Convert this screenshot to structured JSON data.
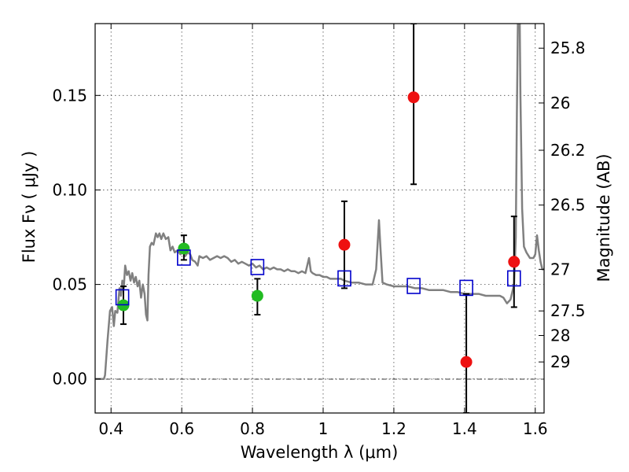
{
  "chart_data": {
    "type": "scatter",
    "xlabel": "Wavelength  λ (μm)",
    "ylabel": "Flux  Fν  ( μJy )",
    "ylabel_right": "Magnitude (AB)",
    "xlim": [
      0.355,
      1.625
    ],
    "ylim": [
      -0.018,
      0.188
    ],
    "x_ticks": [
      0.4,
      0.6,
      0.8,
      1.0,
      1.2,
      1.4,
      1.6
    ],
    "x_tick_labels": [
      "0.4",
      "0.6",
      "0.8",
      "1",
      "1.2",
      "1.4",
      "1.6"
    ],
    "y_ticks": [
      0.0,
      0.05,
      0.1,
      0.15
    ],
    "y_tick_labels": [
      "0.00",
      "0.05",
      "0.10",
      "0.15"
    ],
    "mag_ticks": [
      {
        "label": "25.8",
        "flux": 0.175
      },
      {
        "label": "26",
        "flux": 0.146
      },
      {
        "label": "26.2",
        "flux": 0.121
      },
      {
        "label": "26.5",
        "flux": 0.092
      },
      {
        "label": "27",
        "flux": 0.058
      },
      {
        "label": "27.5",
        "flux": 0.036
      },
      {
        "label": "28",
        "flux": 0.023
      },
      {
        "label": "29",
        "flux": 0.009
      }
    ],
    "grid": true,
    "colors": {
      "green": "#22bb22",
      "red": "#ee1111",
      "model": "#808080",
      "square": "#0000cc"
    },
    "series": [
      {
        "color": "green",
        "points": [
          {
            "x": 0.435,
            "y": 0.039,
            "lo": 0.029,
            "hi": 0.049
          },
          {
            "x": 0.606,
            "y": 0.069,
            "lo": 0.063,
            "hi": 0.076
          },
          {
            "x": 0.814,
            "y": 0.044,
            "lo": 0.034,
            "hi": 0.053
          }
        ]
      },
      {
        "color": "red",
        "points": [
          {
            "x": 1.06,
            "y": 0.071,
            "lo": 0.048,
            "hi": 0.094
          },
          {
            "x": 1.256,
            "y": 0.149,
            "lo": 0.103,
            "hi": 0.188
          },
          {
            "x": 1.405,
            "y": 0.009,
            "lo": -0.018,
            "hi": 0.045
          },
          {
            "x": 1.54,
            "y": 0.062,
            "lo": 0.038,
            "hi": 0.086
          }
        ]
      },
      {
        "color": "square",
        "points": [
          {
            "x": 0.432,
            "y": 0.043
          },
          {
            "x": 0.606,
            "y": 0.064
          },
          {
            "x": 0.814,
            "y": 0.059
          },
          {
            "x": 1.06,
            "y": 0.053
          },
          {
            "x": 1.256,
            "y": 0.049
          },
          {
            "x": 1.405,
            "y": 0.048
          },
          {
            "x": 1.54,
            "y": 0.053
          }
        ]
      }
    ],
    "model_curve": [
      [
        0.355,
        0.0
      ],
      [
        0.37,
        0.0
      ],
      [
        0.38,
        0.0
      ],
      [
        0.383,
        0.002
      ],
      [
        0.39,
        0.02
      ],
      [
        0.397,
        0.036
      ],
      [
        0.403,
        0.038
      ],
      [
        0.408,
        0.028
      ],
      [
        0.412,
        0.036
      ],
      [
        0.418,
        0.035
      ],
      [
        0.424,
        0.048
      ],
      [
        0.428,
        0.044
      ],
      [
        0.432,
        0.052
      ],
      [
        0.436,
        0.048
      ],
      [
        0.44,
        0.06
      ],
      [
        0.445,
        0.055
      ],
      [
        0.45,
        0.057
      ],
      [
        0.455,
        0.052
      ],
      [
        0.46,
        0.056
      ],
      [
        0.465,
        0.051
      ],
      [
        0.47,
        0.054
      ],
      [
        0.475,
        0.049
      ],
      [
        0.48,
        0.052
      ],
      [
        0.485,
        0.043
      ],
      [
        0.49,
        0.05
      ],
      [
        0.495,
        0.045
      ],
      [
        0.499,
        0.034
      ],
      [
        0.503,
        0.031
      ],
      [
        0.506,
        0.055
      ],
      [
        0.51,
        0.07
      ],
      [
        0.515,
        0.072
      ],
      [
        0.52,
        0.071
      ],
      [
        0.527,
        0.077
      ],
      [
        0.532,
        0.075
      ],
      [
        0.537,
        0.077
      ],
      [
        0.542,
        0.074
      ],
      [
        0.548,
        0.077
      ],
      [
        0.555,
        0.074
      ],
      [
        0.562,
        0.075
      ],
      [
        0.568,
        0.068
      ],
      [
        0.574,
        0.07
      ],
      [
        0.58,
        0.067
      ],
      [
        0.588,
        0.068
      ],
      [
        0.596,
        0.066
      ],
      [
        0.603,
        0.067
      ],
      [
        0.61,
        0.065
      ],
      [
        0.617,
        0.067
      ],
      [
        0.624,
        0.066
      ],
      [
        0.63,
        0.063
      ],
      [
        0.638,
        0.062
      ],
      [
        0.645,
        0.06
      ],
      [
        0.65,
        0.065
      ],
      [
        0.66,
        0.064
      ],
      [
        0.67,
        0.065
      ],
      [
        0.68,
        0.063
      ],
      [
        0.69,
        0.064
      ],
      [
        0.7,
        0.065
      ],
      [
        0.71,
        0.064
      ],
      [
        0.72,
        0.065
      ],
      [
        0.73,
        0.064
      ],
      [
        0.74,
        0.062
      ],
      [
        0.75,
        0.063
      ],
      [
        0.76,
        0.061
      ],
      [
        0.77,
        0.062
      ],
      [
        0.78,
        0.061
      ],
      [
        0.79,
        0.06
      ],
      [
        0.8,
        0.061
      ],
      [
        0.81,
        0.059
      ],
      [
        0.82,
        0.06
      ],
      [
        0.83,
        0.058
      ],
      [
        0.84,
        0.059
      ],
      [
        0.85,
        0.058
      ],
      [
        0.86,
        0.059
      ],
      [
        0.87,
        0.058
      ],
      [
        0.88,
        0.058
      ],
      [
        0.89,
        0.057
      ],
      [
        0.9,
        0.058
      ],
      [
        0.91,
        0.057
      ],
      [
        0.92,
        0.057
      ],
      [
        0.93,
        0.056
      ],
      [
        0.94,
        0.057
      ],
      [
        0.95,
        0.056
      ],
      [
        0.96,
        0.064
      ],
      [
        0.965,
        0.057
      ],
      [
        0.97,
        0.056
      ],
      [
        0.98,
        0.055
      ],
      [
        0.99,
        0.055
      ],
      [
        1.0,
        0.054
      ],
      [
        1.01,
        0.054
      ],
      [
        1.02,
        0.053
      ],
      [
        1.03,
        0.053
      ],
      [
        1.04,
        0.053
      ],
      [
        1.05,
        0.053
      ],
      [
        1.06,
        0.052
      ],
      [
        1.08,
        0.051
      ],
      [
        1.1,
        0.051
      ],
      [
        1.12,
        0.05
      ],
      [
        1.14,
        0.05
      ],
      [
        1.15,
        0.058
      ],
      [
        1.158,
        0.084
      ],
      [
        1.162,
        0.07
      ],
      [
        1.168,
        0.051
      ],
      [
        1.18,
        0.05
      ],
      [
        1.2,
        0.049
      ],
      [
        1.22,
        0.049
      ],
      [
        1.24,
        0.049
      ],
      [
        1.26,
        0.048
      ],
      [
        1.28,
        0.048
      ],
      [
        1.3,
        0.047
      ],
      [
        1.32,
        0.047
      ],
      [
        1.34,
        0.047
      ],
      [
        1.36,
        0.046
      ],
      [
        1.38,
        0.046
      ],
      [
        1.4,
        0.045
      ],
      [
        1.42,
        0.045
      ],
      [
        1.44,
        0.045
      ],
      [
        1.46,
        0.044
      ],
      [
        1.48,
        0.044
      ],
      [
        1.5,
        0.044
      ],
      [
        1.51,
        0.043
      ],
      [
        1.52,
        0.04
      ],
      [
        1.53,
        0.042
      ],
      [
        1.54,
        0.05
      ],
      [
        1.545,
        0.075
      ],
      [
        1.548,
        0.14
      ],
      [
        1.551,
        0.19
      ],
      [
        1.556,
        0.19
      ],
      [
        1.558,
        0.15
      ],
      [
        1.563,
        0.09
      ],
      [
        1.568,
        0.07
      ],
      [
        1.575,
        0.067
      ],
      [
        1.585,
        0.064
      ],
      [
        1.595,
        0.064
      ],
      [
        1.6,
        0.066
      ],
      [
        1.605,
        0.076
      ],
      [
        1.61,
        0.068
      ],
      [
        1.615,
        0.062
      ],
      [
        1.62,
        0.058
      ],
      [
        1.625,
        0.058
      ]
    ]
  }
}
